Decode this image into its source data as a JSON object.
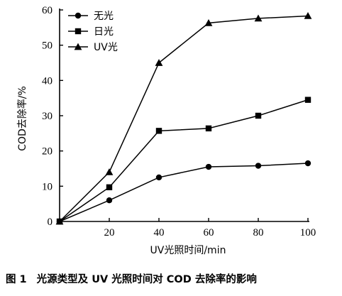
{
  "chart_data": {
    "type": "line",
    "x": [
      0,
      20,
      40,
      60,
      80,
      100
    ],
    "xlabel": "UV光照时间/min",
    "ylabel": "COD去除率/%",
    "xticks": [
      20,
      40,
      60,
      80,
      100
    ],
    "yticks": [
      0,
      10,
      20,
      30,
      40,
      50,
      60
    ],
    "xlim": [
      0,
      100
    ],
    "ylim": [
      0,
      60
    ],
    "grid": false,
    "legend_position": "top-left",
    "series": [
      {
        "name": "无光",
        "marker": "circle",
        "values": [
          0,
          6,
          12.5,
          15.5,
          15.8,
          16.5
        ]
      },
      {
        "name": "日光",
        "marker": "square",
        "values": [
          0,
          9.7,
          25.7,
          26.4,
          30,
          34.5
        ]
      },
      {
        "name": "UV光",
        "marker": "triangle",
        "values": [
          0,
          14,
          45,
          56.3,
          57.6,
          58.3
        ]
      }
    ]
  },
  "caption": {
    "number": "图 1",
    "text": "光源类型及 UV 光照时间对 COD 去除率的影响"
  }
}
